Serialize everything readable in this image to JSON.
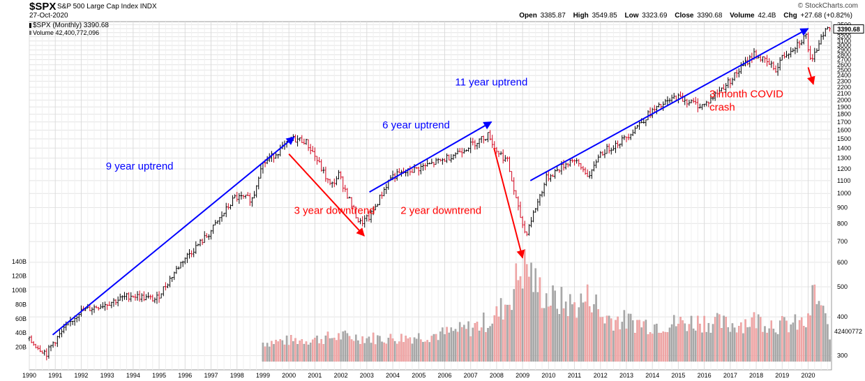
{
  "header": {
    "symbol": "$SPX",
    "description": "S&P 500 Large Cap Index",
    "exchange": "INDX",
    "date": "27-Oct-2020",
    "brand": "© StockCharts.com",
    "open_label": "Open",
    "open": "3385.87",
    "high_label": "High",
    "high": "3549.85",
    "low_label": "Low",
    "low": "3323.69",
    "close_label": "Close",
    "close": "3390.68",
    "volume_label": "Volume",
    "volume": "42.4B",
    "chg_label": "Chg",
    "chg": "+27.68 (+0.82%)"
  },
  "legend": {
    "price": "$SPX (Monthly) 3390.68",
    "volume": "Volume 42,400,772,096"
  },
  "last_price_tag": "3390.68",
  "last_volume_tag": "42400772",
  "colors": {
    "up": "#000000",
    "down": "#d0021b",
    "vol_up": "#a9a9a9",
    "vol_down": "#f2a7a7",
    "trend_up": "#0000ff",
    "trend_down": "#ff0000"
  },
  "annotations": [
    {
      "text": "9 year uptrend",
      "color": "blue"
    },
    {
      "text": "3 year downtrend",
      "color": "red"
    },
    {
      "text": "6 year uptrend",
      "color": "blue"
    },
    {
      "text": "2 year downtrend",
      "color": "red"
    },
    {
      "text": "11 year uptrend",
      "color": "blue"
    },
    {
      "text": "3 month COVID",
      "color": "red"
    },
    {
      "text": "crash",
      "color": "red"
    }
  ],
  "chart_data": {
    "type": "bar",
    "title": "$SPX S&P 500 Large Cap Index INDX",
    "interval": "Monthly",
    "x_ticks": [
      "1990",
      "1991",
      "1992",
      "1993",
      "1994",
      "1995",
      "1996",
      "1997",
      "1998",
      "1999",
      "2000",
      "2001",
      "2002",
      "2003",
      "2004",
      "2005",
      "2006",
      "2007",
      "2008",
      "2009",
      "2010",
      "2011",
      "2012",
      "2013",
      "2014",
      "2015",
      "2016",
      "2017",
      "2018",
      "2019",
      "2020"
    ],
    "price_scale": "log",
    "price_ticks": [
      300,
      400,
      500,
      600,
      700,
      800,
      900,
      1000,
      1100,
      1200,
      1300,
      1400,
      1500,
      1600,
      1700,
      1800,
      1900,
      2000,
      2100,
      2200,
      2300,
      2400,
      2500,
      2600,
      2700,
      2800,
      2900,
      3000,
      3100,
      3200,
      3300,
      3400,
      3500
    ],
    "volume_ticks": [
      "20B",
      "40B",
      "60B",
      "80B",
      "100B",
      "120B",
      "140B"
    ],
    "price_series": {
      "name": "$SPX (Monthly)",
      "points": [
        {
          "x": 1990.0,
          "y": 340
        },
        {
          "x": 1990.75,
          "y": 305
        },
        {
          "x": 1991.0,
          "y": 330
        },
        {
          "x": 1992.0,
          "y": 415
        },
        {
          "x": 1993.0,
          "y": 440
        },
        {
          "x": 1994.0,
          "y": 470
        },
        {
          "x": 1994.9,
          "y": 455
        },
        {
          "x": 1995.0,
          "y": 460
        },
        {
          "x": 1996.0,
          "y": 610
        },
        {
          "x": 1997.0,
          "y": 740
        },
        {
          "x": 1998.0,
          "y": 970
        },
        {
          "x": 1998.7,
          "y": 960
        },
        {
          "x": 1999.0,
          "y": 1230
        },
        {
          "x": 2000.0,
          "y": 1440
        },
        {
          "x": 2000.2,
          "y": 1500
        },
        {
          "x": 2000.7,
          "y": 1480
        },
        {
          "x": 2001.0,
          "y": 1360
        },
        {
          "x": 2001.7,
          "y": 1050
        },
        {
          "x": 2002.0,
          "y": 1150
        },
        {
          "x": 2002.8,
          "y": 800
        },
        {
          "x": 2003.2,
          "y": 840
        },
        {
          "x": 2004.0,
          "y": 1130
        },
        {
          "x": 2005.0,
          "y": 1200
        },
        {
          "x": 2006.0,
          "y": 1280
        },
        {
          "x": 2007.0,
          "y": 1420
        },
        {
          "x": 2007.8,
          "y": 1550
        },
        {
          "x": 2008.0,
          "y": 1400
        },
        {
          "x": 2008.5,
          "y": 1270
        },
        {
          "x": 2008.9,
          "y": 900
        },
        {
          "x": 2009.2,
          "y": 735
        },
        {
          "x": 2010.0,
          "y": 1120
        },
        {
          "x": 2011.0,
          "y": 1290
        },
        {
          "x": 2011.7,
          "y": 1130
        },
        {
          "x": 2012.0,
          "y": 1330
        },
        {
          "x": 2013.0,
          "y": 1500
        },
        {
          "x": 2014.0,
          "y": 1820
        },
        {
          "x": 2015.0,
          "y": 2050
        },
        {
          "x": 2015.9,
          "y": 1920
        },
        {
          "x": 2016.1,
          "y": 1930
        },
        {
          "x": 2017.0,
          "y": 2280
        },
        {
          "x": 2018.0,
          "y": 2820
        },
        {
          "x": 2018.9,
          "y": 2500
        },
        {
          "x": 2019.0,
          "y": 2700
        },
        {
          "x": 2020.0,
          "y": 3230
        },
        {
          "x": 2020.2,
          "y": 2580
        },
        {
          "x": 2020.6,
          "y": 3270
        },
        {
          "x": 2020.8,
          "y": 3390
        }
      ]
    },
    "volume_series": {
      "name": "Volume",
      "points": [
        {
          "x": 1999.0,
          "y": 27
        },
        {
          "x": 2000.0,
          "y": 30
        },
        {
          "x": 2001.0,
          "y": 32
        },
        {
          "x": 2002.0,
          "y": 36
        },
        {
          "x": 2003.0,
          "y": 34
        },
        {
          "x": 2004.0,
          "y": 33
        },
        {
          "x": 2005.0,
          "y": 36
        },
        {
          "x": 2006.0,
          "y": 40
        },
        {
          "x": 2007.0,
          "y": 48
        },
        {
          "x": 2007.9,
          "y": 62
        },
        {
          "x": 2008.5,
          "y": 90
        },
        {
          "x": 2008.9,
          "y": 130
        },
        {
          "x": 2009.2,
          "y": 138
        },
        {
          "x": 2009.5,
          "y": 110
        },
        {
          "x": 2010.0,
          "y": 90
        },
        {
          "x": 2011.0,
          "y": 80
        },
        {
          "x": 2011.7,
          "y": 95
        },
        {
          "x": 2012.0,
          "y": 65
        },
        {
          "x": 2013.0,
          "y": 58
        },
        {
          "x": 2014.0,
          "y": 53
        },
        {
          "x": 2015.0,
          "y": 55
        },
        {
          "x": 2016.0,
          "y": 58
        },
        {
          "x": 2017.0,
          "y": 52
        },
        {
          "x": 2018.0,
          "y": 60
        },
        {
          "x": 2019.0,
          "y": 52
        },
        {
          "x": 2020.0,
          "y": 55
        },
        {
          "x": 2020.2,
          "y": 100
        },
        {
          "x": 2020.5,
          "y": 78
        },
        {
          "x": 2020.8,
          "y": 42.4
        }
      ]
    },
    "trendlines": [
      {
        "label": "9 year uptrend",
        "from": {
          "x": 1990.9,
          "y": 350
        },
        "to": {
          "x": 2000.2,
          "y": 1520
        },
        "color": "blue"
      },
      {
        "label": "3 year downtrend",
        "from": {
          "x": 2000.0,
          "y": 1340
        },
        "to": {
          "x": 2002.9,
          "y": 730
        },
        "color": "red"
      },
      {
        "label": "6 year uptrend",
        "from": {
          "x": 2003.1,
          "y": 1010
        },
        "to": {
          "x": 2007.8,
          "y": 1700
        },
        "color": "blue"
      },
      {
        "label": "2 year downtrend",
        "from": {
          "x": 2007.9,
          "y": 1400
        },
        "to": {
          "x": 2009.0,
          "y": 620
        },
        "color": "red"
      },
      {
        "label": "11 year uptrend",
        "from": {
          "x": 2009.3,
          "y": 1100
        },
        "to": {
          "x": 2020.0,
          "y": 3400
        },
        "color": "blue"
      },
      {
        "label": "3 month COVID crash",
        "from": {
          "x": 2020.0,
          "y": 2550
        },
        "to": {
          "x": 2020.2,
          "y": 2250
        },
        "color": "red"
      }
    ],
    "ylim_price": [
      270,
      3580
    ],
    "grid": true,
    "legend": "top-left"
  }
}
